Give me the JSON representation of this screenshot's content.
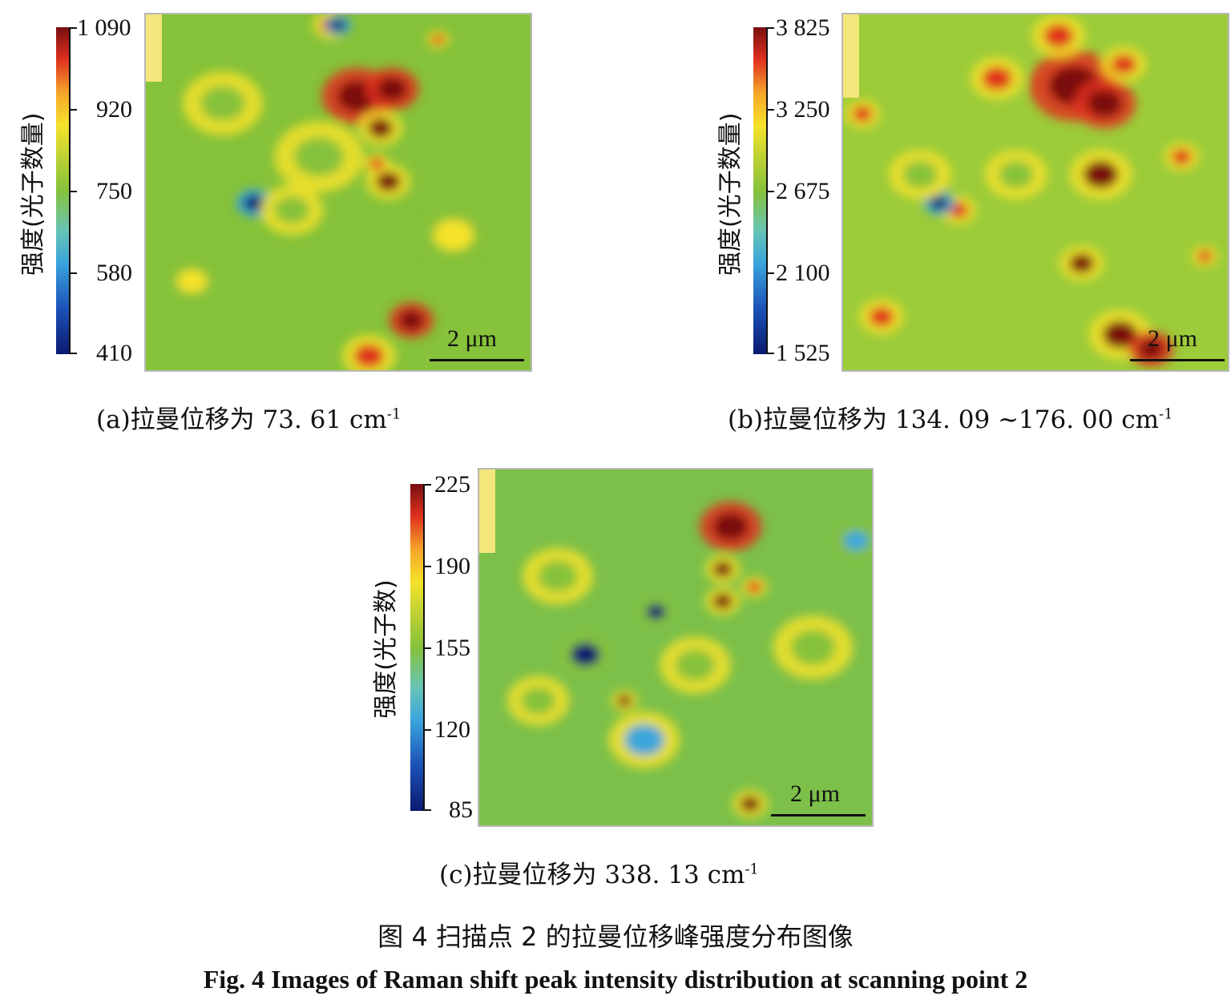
{
  "chart_data": [
    {
      "type": "heatmap",
      "panel": "a",
      "ylabel": "强度(光子数量)",
      "colorbar_ticks": [
        "1 090",
        "920",
        "750",
        "580",
        "410"
      ],
      "colorbar_range": [
        410,
        1090
      ],
      "scale_bar": "2 μm",
      "caption_prefix": "(a)拉曼位移为 73. 61 cm",
      "caption_sup": "-1",
      "colormap": [
        "#0a1a70",
        "#3aa6dc",
        "#86c23a",
        "#f5e22a",
        "#e0321e",
        "#7a0d10"
      ],
      "background_color": "#86c23a",
      "features": [
        {
          "cx": 0.55,
          "cy": 0.23,
          "r": 0.08,
          "v": 1.0
        },
        {
          "cx": 0.64,
          "cy": 0.21,
          "r": 0.06,
          "v": 0.95
        },
        {
          "cx": 0.61,
          "cy": 0.32,
          "r": 0.05,
          "v": 0.9
        },
        {
          "cx": 0.63,
          "cy": 0.47,
          "r": 0.05,
          "v": 0.9
        },
        {
          "cx": 0.6,
          "cy": 0.42,
          "r": 0.03,
          "v": 0.85
        },
        {
          "cx": 0.69,
          "cy": 0.86,
          "r": 0.05,
          "v": 0.95
        },
        {
          "cx": 0.58,
          "cy": 0.96,
          "r": 0.06,
          "v": 0.85
        },
        {
          "cx": 0.48,
          "cy": 0.03,
          "r": 0.04,
          "v": 0.88
        },
        {
          "cx": 0.76,
          "cy": 0.07,
          "r": 0.025,
          "v": 0.85
        },
        {
          "cx": 0.28,
          "cy": 0.53,
          "r": 0.04,
          "v": 0.0
        },
        {
          "cx": 0.5,
          "cy": 0.03,
          "r": 0.03,
          "v": 0.0
        },
        {
          "cx": 0.38,
          "cy": 0.55,
          "r": 0.07,
          "v": 0.3
        },
        {
          "cx": 0.45,
          "cy": 0.4,
          "r": 0.1,
          "v": 0.3
        },
        {
          "cx": 0.2,
          "cy": 0.25,
          "r": 0.09,
          "v": 0.32
        },
        {
          "cx": 0.8,
          "cy": 0.62,
          "r": 0.08,
          "v": 0.55
        },
        {
          "cx": 0.12,
          "cy": 0.75,
          "r": 0.06,
          "v": 0.55
        }
      ]
    },
    {
      "type": "heatmap",
      "panel": "b",
      "ylabel": "强度(光子数量)",
      "colorbar_ticks": [
        "3 825",
        "3 250",
        "2 675",
        "2 100",
        "1 525"
      ],
      "colorbar_range": [
        1525,
        3825
      ],
      "scale_bar": "2 μm",
      "caption_prefix": "(b)拉曼位移为 134. 09 ~176. 00 cm",
      "caption_sup": "-1",
      "colormap": [
        "#0a1a70",
        "#3aa6dc",
        "#86c23a",
        "#f5e22a",
        "#e0321e",
        "#7a0d10"
      ],
      "background_color": "#9ccc3a",
      "features": [
        {
          "cx": 0.6,
          "cy": 0.2,
          "r": 0.1,
          "v": 0.95
        },
        {
          "cx": 0.68,
          "cy": 0.25,
          "r": 0.07,
          "v": 1.0
        },
        {
          "cx": 0.67,
          "cy": 0.45,
          "r": 0.07,
          "v": 0.92
        },
        {
          "cx": 0.4,
          "cy": 0.18,
          "r": 0.06,
          "v": 0.88
        },
        {
          "cx": 0.56,
          "cy": 0.06,
          "r": 0.06,
          "v": 0.85
        },
        {
          "cx": 0.73,
          "cy": 0.14,
          "r": 0.05,
          "v": 0.85
        },
        {
          "cx": 0.62,
          "cy": 0.7,
          "r": 0.05,
          "v": 0.9
        },
        {
          "cx": 0.72,
          "cy": 0.9,
          "r": 0.07,
          "v": 0.92
        },
        {
          "cx": 0.8,
          "cy": 0.94,
          "r": 0.05,
          "v": 0.95
        },
        {
          "cx": 0.1,
          "cy": 0.85,
          "r": 0.05,
          "v": 0.82
        },
        {
          "cx": 0.3,
          "cy": 0.55,
          "r": 0.04,
          "v": 0.8
        },
        {
          "cx": 0.94,
          "cy": 0.68,
          "r": 0.03,
          "v": 0.85
        },
        {
          "cx": 0.88,
          "cy": 0.4,
          "r": 0.04,
          "v": 0.82
        },
        {
          "cx": 0.05,
          "cy": 0.28,
          "r": 0.04,
          "v": 0.8
        },
        {
          "cx": 0.25,
          "cy": 0.53,
          "r": 0.035,
          "v": 0.0
        },
        {
          "cx": 0.2,
          "cy": 0.45,
          "r": 0.07,
          "v": 0.35
        },
        {
          "cx": 0.45,
          "cy": 0.45,
          "r": 0.07,
          "v": 0.42
        }
      ]
    },
    {
      "type": "heatmap",
      "panel": "c",
      "ylabel": "强度(光子数)",
      "colorbar_ticks": [
        "225",
        "190",
        "155",
        "120",
        "85"
      ],
      "colorbar_range": [
        85,
        225
      ],
      "scale_bar": "2 μm",
      "caption_prefix": "(c)拉曼位移为 338. 13 cm",
      "caption_sup": "-1",
      "colormap": [
        "#0a1a70",
        "#3aa6dc",
        "#86c23a",
        "#f5e22a",
        "#e0321e",
        "#7a0d10"
      ],
      "background_color": "#7cc04a",
      "features": [
        {
          "cx": 0.64,
          "cy": 0.16,
          "r": 0.07,
          "v": 0.95
        },
        {
          "cx": 0.62,
          "cy": 0.28,
          "r": 0.04,
          "v": 0.9
        },
        {
          "cx": 0.62,
          "cy": 0.37,
          "r": 0.04,
          "v": 0.92
        },
        {
          "cx": 0.37,
          "cy": 0.65,
          "r": 0.03,
          "v": 0.9
        },
        {
          "cx": 0.7,
          "cy": 0.33,
          "r": 0.03,
          "v": 0.8
        },
        {
          "cx": 0.69,
          "cy": 0.94,
          "r": 0.04,
          "v": 0.9
        },
        {
          "cx": 0.27,
          "cy": 0.52,
          "r": 0.06,
          "v": 0.05
        },
        {
          "cx": 0.45,
          "cy": 0.4,
          "r": 0.04,
          "v": 0.08
        },
        {
          "cx": 0.96,
          "cy": 0.2,
          "r": 0.05,
          "v": 0.1
        },
        {
          "cx": 0.42,
          "cy": 0.76,
          "r": 0.08,
          "v": 0.25
        },
        {
          "cx": 0.2,
          "cy": 0.3,
          "r": 0.08,
          "v": 0.3
        },
        {
          "cx": 0.85,
          "cy": 0.5,
          "r": 0.09,
          "v": 0.33
        },
        {
          "cx": 0.15,
          "cy": 0.65,
          "r": 0.07,
          "v": 0.32
        },
        {
          "cx": 0.55,
          "cy": 0.55,
          "r": 0.08,
          "v": 0.3
        }
      ]
    }
  ],
  "figure_title_cn": "图 4    扫描点 2 的拉曼位移峰强度分布图像",
  "figure_title_en": "Fig. 4    Images of Raman shift peak intensity distribution at scanning point 2"
}
